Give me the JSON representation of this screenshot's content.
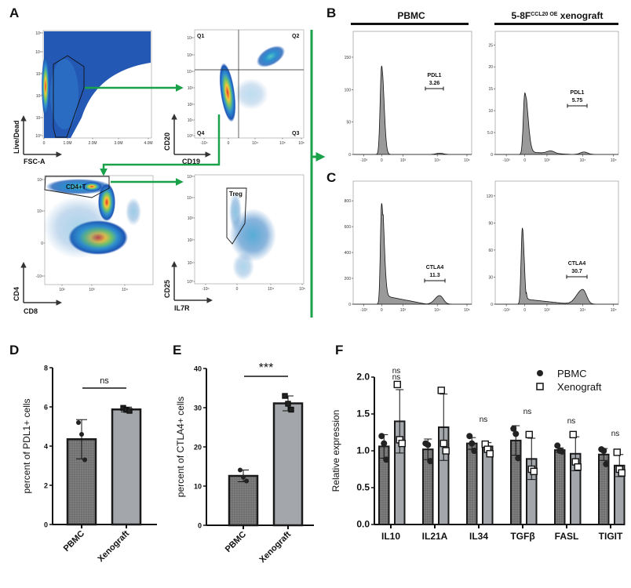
{
  "panel_labels": {
    "a": "A",
    "b": "B",
    "c": "C",
    "d": "D",
    "e": "E",
    "f": "F"
  },
  "colors": {
    "arrow_green": "#1aa24a",
    "pbmc_bar": "#6f6f6f",
    "xeno_bar": "#a3a6aa",
    "histogram_fill": "#9a9a9a"
  },
  "panel_a": {
    "plot1": {
      "y_axis": "Live/Dead",
      "x_axis": "FSC-A",
      "y_ticks": [
        "10⁰",
        "10¹",
        "10²",
        "10³",
        "10⁴",
        "10⁵"
      ],
      "x_ticks": [
        "0",
        "1.0M",
        "2.0M",
        "3.0M",
        "4.0M"
      ]
    },
    "plot2": {
      "y_axis": "CD20",
      "x_axis": "CD19",
      "quadrants": [
        "Q1",
        "Q2",
        "Q3",
        "Q4"
      ],
      "y_ticks": [
        "10⁰",
        "10¹",
        "10²",
        "10³",
        "10⁴",
        "10⁵",
        "10⁶"
      ],
      "x_ticks": [
        "-10⁴",
        "0",
        "10⁴",
        "10⁵",
        "10⁶"
      ]
    },
    "plot3": {
      "y_axis": "CD4",
      "x_axis": "CD8",
      "gate": "CD4+T",
      "y_ticks": [
        "-10⁴",
        "0",
        "10⁴",
        "10⁵"
      ],
      "x_ticks": [
        "10²",
        "10³",
        "10⁴"
      ]
    },
    "plot4": {
      "y_axis": "CD25",
      "x_axis": "IL7R",
      "gate": "Treg",
      "y_ticks": [
        "10⁰",
        "10¹",
        "10²",
        "10³",
        "10⁴",
        "10⁵"
      ],
      "x_ticks": [
        "-10⁴",
        "0",
        "10⁴",
        "10⁵"
      ]
    }
  },
  "headers": {
    "pbmc": "PBMC",
    "xeno_main": "5-8F",
    "xeno_sup": "CCL20 OE",
    "xeno_tail": " xenograft"
  },
  "hist_x_ticks": [
    "-10³",
    "0",
    "10³",
    "10⁴",
    "10⁵"
  ],
  "panel_b": {
    "left": {
      "y_ticks": [
        "0",
        "50",
        "100",
        "150"
      ],
      "gate": "PDL1",
      "value": "3.26"
    },
    "right": {
      "y_ticks": [
        "0",
        "5.0",
        "10",
        "15",
        "20",
        "25"
      ],
      "gate": "PDL1",
      "value": "5.75"
    }
  },
  "panel_c": {
    "left": {
      "y_ticks": [
        "0",
        "200",
        "400",
        "600",
        "800"
      ],
      "gate": "CTLA4",
      "value": "11.3"
    },
    "right": {
      "y_ticks": [
        "0",
        "30",
        "60",
        "90",
        "120"
      ],
      "gate": "CTLA4",
      "value": "30.7"
    }
  },
  "chart_data": [
    {
      "type": "bar",
      "panel": "D",
      "categories": [
        "PBMC",
        "Xenograft"
      ],
      "ylabel": "percent of PDL1+ cells",
      "ylim": [
        0,
        8
      ],
      "y_ticks": [
        "0",
        "2",
        "4",
        "6",
        "8"
      ],
      "values": [
        4.35,
        5.87
      ],
      "sd": [
        1.0,
        0.12
      ],
      "points": [
        [
          5.2,
          4.6,
          3.3
        ],
        [
          5.95,
          5.85,
          5.8
        ]
      ],
      "significance": "ns"
    },
    {
      "type": "bar",
      "panel": "E",
      "categories": [
        "PBMC",
        "Xenograft"
      ],
      "ylabel": "percent of CTLA4+ cells",
      "ylim": [
        0,
        40
      ],
      "y_ticks": [
        "0",
        "10",
        "20",
        "30",
        "40"
      ],
      "values": [
        12.6,
        31.1
      ],
      "sd": [
        1.5,
        1.9
      ],
      "points": [
        [
          14.1,
          12.3,
          11.3
        ],
        [
          33.0,
          31.0,
          29.5
        ]
      ],
      "significance": "***"
    },
    {
      "type": "bar",
      "panel": "F",
      "categories": [
        "IL10",
        "IL21A",
        "IL34",
        "TGFβ",
        "FASL",
        "TIGIT"
      ],
      "ylabel": "Relative expression",
      "ylim": [
        0,
        2
      ],
      "y_ticks": [
        "0.0",
        "0.5",
        "1.0",
        "1.5",
        "2.0"
      ],
      "legend_position": "top-right",
      "series": [
        {
          "name": "PBMC",
          "values": [
            1.06,
            1.02,
            1.1,
            1.14,
            1.01,
            0.95
          ],
          "sd": [
            0.16,
            0.14,
            0.08,
            0.2,
            0.03,
            0.08
          ],
          "points": [
            [
              1.2,
              1.1,
              0.88
            ],
            [
              1.1,
              1.08,
              0.86
            ],
            [
              1.2,
              1.1,
              1.0
            ],
            [
              1.3,
              1.23,
              0.9
            ],
            [
              1.07,
              1.0,
              0.99
            ],
            [
              1.02,
              1.0,
              0.82
            ]
          ]
        },
        {
          "name": "Xenograft",
          "values": [
            1.4,
            1.32,
            1.06,
            0.89,
            0.96,
            0.8
          ],
          "sd": [
            0.43,
            0.45,
            0.05,
            0.28,
            0.23,
            0.15
          ],
          "points": [
            [
              1.9,
              1.15,
              1.1
            ],
            [
              1.82,
              1.1,
              1.0
            ],
            [
              1.09,
              1.02,
              0.96
            ],
            [
              1.22,
              0.75,
              0.72
            ],
            [
              1.22,
              0.85,
              0.78
            ],
            [
              0.98,
              0.75,
              0.7
            ]
          ]
        }
      ],
      "significance": [
        "ns",
        "ns",
        "ns",
        "ns",
        "ns",
        "ns"
      ]
    }
  ]
}
